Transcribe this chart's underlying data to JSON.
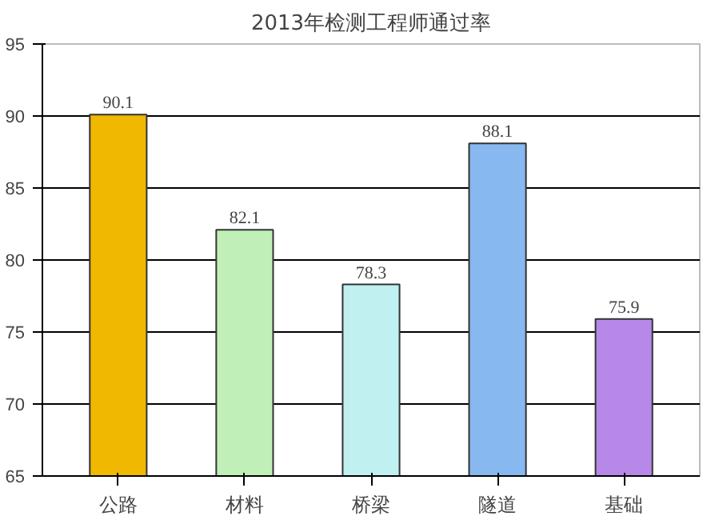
{
  "chart_data": {
    "type": "bar",
    "title": "2013年检测工程师通过率",
    "categories": [
      "公路",
      "材料",
      "桥梁",
      "隧道",
      "基础"
    ],
    "values": [
      90.1,
      82.1,
      78.3,
      88.1,
      75.9
    ],
    "colors": [
      "#f0b800",
      "#c0f0b8",
      "#c0f0f0",
      "#88b8f0",
      "#b888e8"
    ],
    "ylim": [
      65,
      95
    ],
    "yticks": [
      65,
      70,
      75,
      80,
      85,
      90,
      95
    ],
    "grid": "y",
    "data_labels": true
  }
}
